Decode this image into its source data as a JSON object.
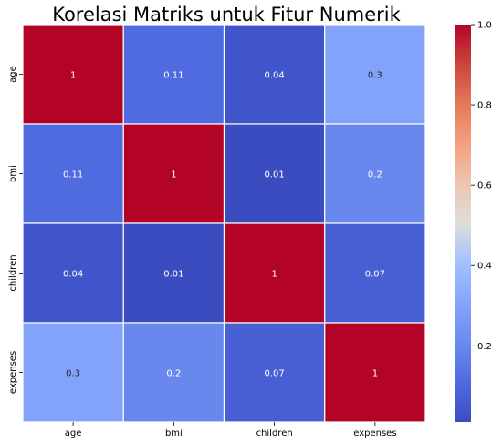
{
  "chart_data": {
    "type": "heatmap",
    "title": "Korelasi Matriks untuk Fitur Numerik",
    "x_labels": [
      "age",
      "bmi",
      "children",
      "expenses"
    ],
    "y_labels": [
      "age",
      "bmi",
      "children",
      "expenses"
    ],
    "values": [
      [
        1,
        0.11,
        0.04,
        0.3
      ],
      [
        0.11,
        1,
        0.01,
        0.2
      ],
      [
        0.04,
        0.01,
        1,
        0.07
      ],
      [
        0.3,
        0.2,
        0.07,
        1
      ]
    ],
    "cell_labels": [
      [
        "1",
        "0.11",
        "0.04",
        "0.3"
      ],
      [
        "0.11",
        "1",
        "0.01",
        "0.2"
      ],
      [
        "0.04",
        "0.01",
        "1",
        "0.07"
      ],
      [
        "0.3",
        "0.2",
        "0.07",
        "1"
      ]
    ],
    "colormap": "coolwarm",
    "vmin": 0.01,
    "vmax": 1,
    "colorbar_ticks": [
      0.2,
      0.4,
      0.6,
      0.8,
      1.0
    ],
    "colorbar_tick_labels": [
      "0.2",
      "0.4",
      "0.6",
      "0.8",
      "1.0"
    ],
    "cell_gridlines": true,
    "gridline_color": "#ffffff"
  }
}
